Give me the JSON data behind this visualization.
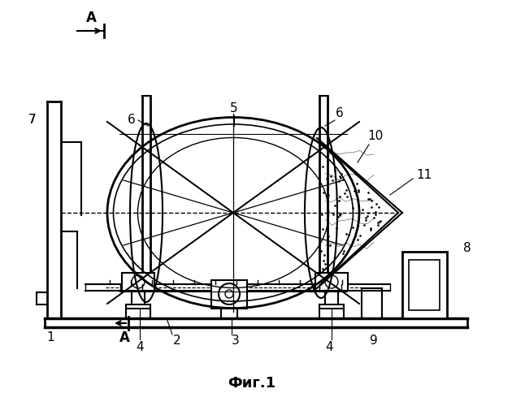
{
  "title": "Фиг.1",
  "bg_color": "#ffffff",
  "line_color": "#000000",
  "figsize": [
    6.3,
    5.0
  ],
  "dpi": 100
}
